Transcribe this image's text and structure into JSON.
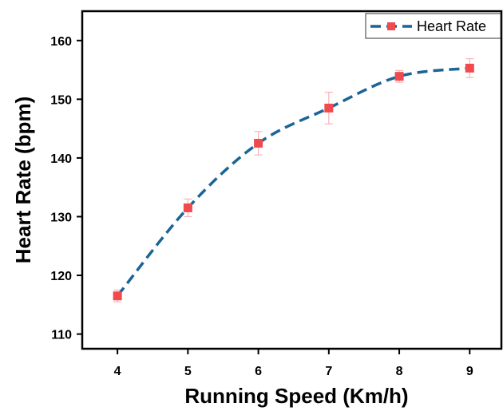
{
  "chart_data": {
    "type": "line",
    "xlabel": "Running Speed (Km/h)",
    "ylabel": "Heart Rate (bpm)",
    "xlim": [
      3.5,
      9.45
    ],
    "ylim": [
      107.5,
      165
    ],
    "xticks": [
      4,
      5,
      6,
      7,
      8,
      9
    ],
    "yticks": [
      110,
      120,
      130,
      140,
      150,
      160
    ],
    "grid": false,
    "legend_position": "top-right",
    "series": [
      {
        "name": "Heart Rate",
        "x": [
          4,
          5,
          6,
          7,
          8,
          9
        ],
        "y": [
          116.5,
          131.5,
          142.5,
          148.5,
          153.9,
          155.3
        ],
        "error": [
          1.0,
          1.5,
          2.0,
          2.7,
          1.0,
          1.6
        ],
        "line_color": "#1a6496",
        "line_style": "dashed",
        "marker": "square",
        "marker_color": "#f04a4f",
        "error_color": "#f7b3b5"
      }
    ]
  }
}
